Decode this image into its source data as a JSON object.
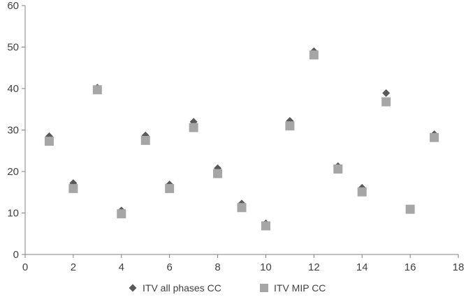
{
  "chart_data": {
    "type": "scatter",
    "title": "",
    "xlabel": "",
    "ylabel": "",
    "xlim": [
      0,
      18
    ],
    "ylim": [
      0,
      60
    ],
    "xticks": [
      0,
      2,
      4,
      6,
      8,
      10,
      12,
      14,
      16,
      18
    ],
    "yticks": [
      0,
      10,
      20,
      30,
      40,
      50,
      60
    ],
    "grid": false,
    "legend_position": "bottom",
    "series": [
      {
        "name": "ITV all phases CC",
        "marker": "diamond",
        "color": "#595959",
        "x": [
          1,
          2,
          3,
          4,
          5,
          6,
          7,
          8,
          9,
          10,
          11,
          12,
          13,
          14,
          15,
          16,
          17
        ],
        "y": [
          28.5,
          17.2,
          40.2,
          10.6,
          28.7,
          16.9,
          32.0,
          20.8,
          12.3,
          7.5,
          32.2,
          49.0,
          21.3,
          16.1,
          38.9,
          11.1,
          29.0
        ]
      },
      {
        "name": "ITV MIP CC",
        "marker": "square",
        "color": "#a6a6a6",
        "x": [
          1,
          2,
          3,
          4,
          5,
          6,
          7,
          8,
          9,
          10,
          11,
          12,
          13,
          14,
          15,
          16,
          17
        ],
        "y": [
          27.3,
          15.9,
          39.7,
          9.8,
          27.5,
          15.9,
          30.6,
          19.5,
          11.3,
          6.9,
          31.0,
          48.1,
          20.6,
          15.1,
          36.8,
          10.9,
          28.2
        ]
      }
    ]
  }
}
